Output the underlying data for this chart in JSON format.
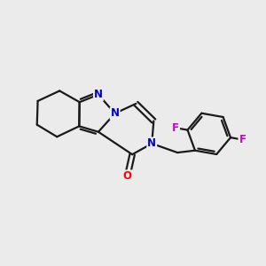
{
  "background_color": "#ebebeb",
  "atom_color_N": "#0000cc",
  "atom_color_O": "#ff0000",
  "atom_color_F": "#cc00cc",
  "bond_color": "#1a1a1a",
  "line_width": 1.6,
  "font_size_atoms": 8.5,
  "xlim": [
    0.5,
    7.5
  ],
  "ylim": [
    2.2,
    7.2
  ]
}
